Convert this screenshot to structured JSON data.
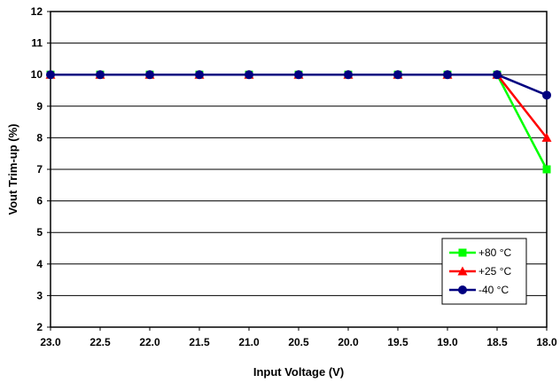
{
  "chart_data": {
    "type": "line",
    "xlabel": "Input Voltage (V)",
    "ylabel": "Vout Trim-up (%)",
    "x": [
      23.0,
      22.5,
      22.0,
      21.5,
      21.0,
      20.5,
      20.0,
      19.5,
      19.0,
      18.5,
      18.0
    ],
    "x_tick_labels": [
      "23.0",
      "22.5",
      "22.0",
      "21.5",
      "21.0",
      "20.5",
      "20.0",
      "19.5",
      "19.0",
      "18.5",
      "18.0"
    ],
    "x_reversed": true,
    "xlim": [
      23.0,
      18.0
    ],
    "ylim": [
      2,
      12
    ],
    "y_ticks": [
      2,
      3,
      4,
      5,
      6,
      7,
      8,
      9,
      10,
      11,
      12
    ],
    "grid": "horizontal",
    "legend_position": "bottom-right",
    "series": [
      {
        "name": "+80 °C",
        "color": "#00ff00",
        "marker": "square",
        "values": [
          10,
          10,
          10,
          10,
          10,
          10,
          10,
          10,
          10,
          10,
          7.0
        ]
      },
      {
        "name": "+25 °C",
        "color": "#ff0000",
        "marker": "triangle",
        "values": [
          10,
          10,
          10,
          10,
          10,
          10,
          10,
          10,
          10,
          10,
          8.0
        ]
      },
      {
        "name": "-40 °C",
        "color": "#000080",
        "marker": "circle",
        "values": [
          10,
          10,
          10,
          10,
          10,
          10,
          10,
          10,
          10,
          10,
          9.35
        ]
      }
    ]
  }
}
